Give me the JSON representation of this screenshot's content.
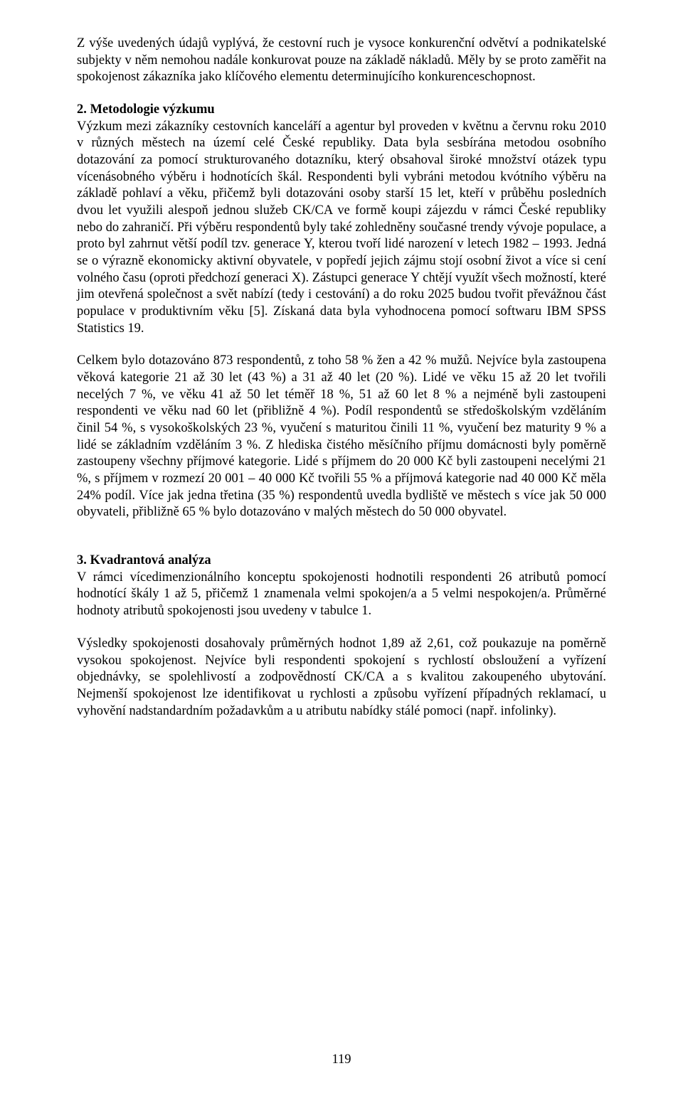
{
  "document": {
    "background_color": "#ffffff",
    "text_color": "#000000",
    "font_family": "Times New Roman",
    "font_size_pt": 12,
    "page_number": "119"
  },
  "paragraphs": {
    "intro": "Z výše uvedených údajů vyplývá, že cestovní ruch je vysoce konkurenční odvětví a podnikatelské subjekty v něm nemohou nadále konkurovat pouze na základě nákladů. Měly by se proto zaměřit na spokojenost zákazníka jako klíčového elementu determinujícího konkurenceschopnost.",
    "section2": {
      "heading": "2. Metodologie výzkumu",
      "body": "Výzkum mezi zákazníky cestovních kanceláří a agentur byl proveden v květnu a červnu roku 2010 v různých městech na území celé České republiky. Data byla sesbírána metodou osobního dotazování za pomocí strukturovaného dotazníku, který obsahoval široké množství otázek typu vícenásobného výběru i hodnotících škál. Respondenti byli vybráni metodou kvótního výběru na základě pohlaví a věku, přičemž byli dotazováni osoby starší 15 let, kteří v průběhu posledních dvou let využili alespoň jednou služeb CK/CA ve formě koupi zájezdu v rámci České republiky nebo do zahraničí. Při výběru respondentů byly také zohledněny současné trendy vývoje populace, a proto byl zahrnut větší podíl tzv. generace Y, kterou tvoří lidé narození v letech 1982 – 1993. Jedná se o výrazně ekonomicky aktivní obyvatele, v popředí jejich zájmu stojí osobní život a více si cení volného času (oproti předchozí generaci X). Zástupci generace Y chtějí využít všech možností, které jim otevřená společnost a svět nabízí (tedy i cestování) a do roku 2025 budou tvořit převážnou část populace v produktivním věku [5]. Získaná data byla vyhodnocena pomocí softwaru IBM SPSS Statistics 19."
    },
    "sample": "Celkem bylo dotazováno 873 respondentů, z toho 58 % žen a 42 % mužů. Nejvíce byla zastoupena věková kategorie 21 až 30 let (43 %) a 31 až 40 let (20 %). Lidé ve věku 15 až 20 let tvořili necelých 7 %, ve věku 41 až 50 let téměř 18 %, 51 až 60 let 8 % a nejméně byli zastoupeni respondenti ve věku nad 60 let (přibližně 4 %). Podíl respondentů se středoškolským vzděláním činil 54 %, s vysokoškolských 23 %, vyučení s maturitou činili 11 %, vyučení bez maturity 9 % a lidé se základním vzděláním 3 %. Z hlediska čistého měsíčního příjmu domácnosti byly poměrně zastoupeny všechny příjmové kategorie. Lidé s příjmem do 20 000 Kč byli zastoupeni necelými 21 %, s příjmem v rozmezí 20 001 – 40 000 Kč tvořili 55 % a příjmová kategorie nad 40 000 Kč měla 24% podíl. Více jak jedna třetina (35 %) respondentů uvedla bydliště ve městech s více jak 50 000 obyvateli, přibližně 65 % bylo dotazováno v malých městech do 50 000 obyvatel.",
    "section3": {
      "heading": "3. Kvadrantová analýza",
      "body": "V rámci vícedimenzionálního konceptu spokojenosti hodnotili respondenti 26 atributů pomocí hodnotící škály 1 až 5, přičemž 1 znamenala velmi spokojen/a a 5 velmi nespokojen/a. Průměrné hodnoty atributů spokojenosti jsou uvedeny v tabulce 1."
    },
    "results": "Výsledky spokojenosti dosahovaly průměrných hodnot 1,89 až 2,61, což poukazuje na poměrně vysokou spokojenost. Nejvíce byli respondenti spokojení s rychlostí obsloužení a vyřízení objednávky, se spolehlivostí a zodpovědností CK/CA a s kvalitou zakoupeného ubytování. Nejmenší spokojenost lze identifikovat u rychlosti a způsobu vyřízení případných reklamací, u vyhovění nadstandardním požadavkům a u atributu nabídky stálé pomoci (např. infolinky)."
  }
}
